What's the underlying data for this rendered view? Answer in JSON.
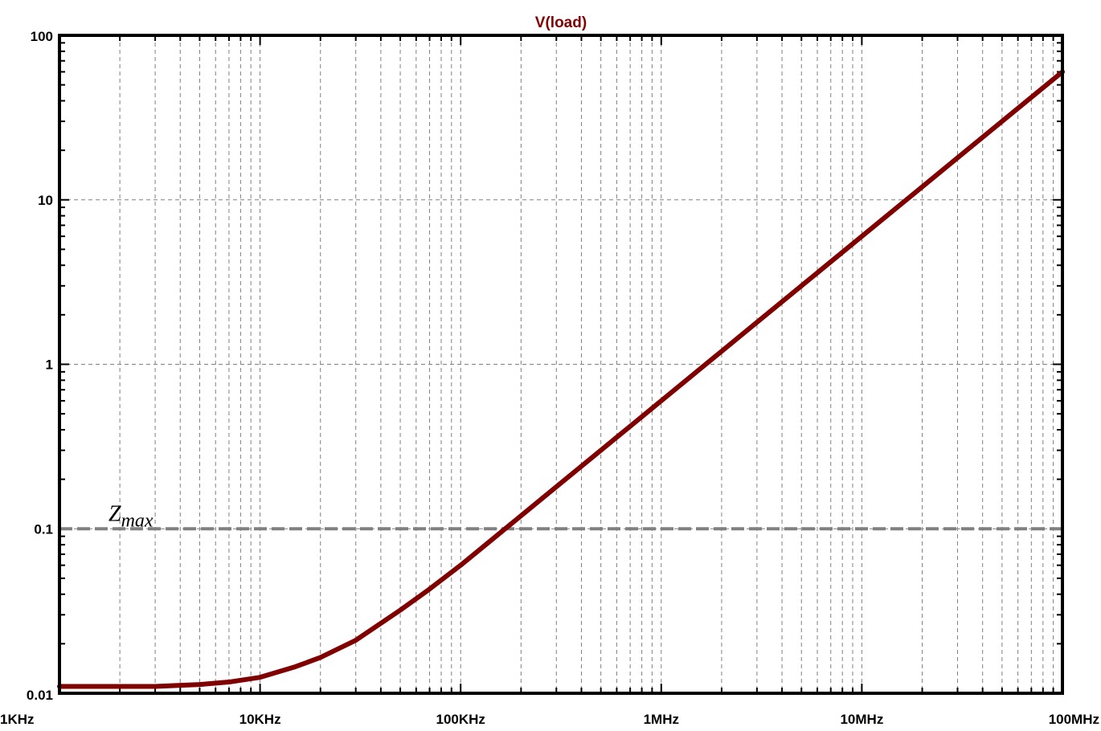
{
  "chart_data": {
    "type": "line",
    "title": "V(load)",
    "xlabel": "",
    "ylabel": "",
    "xscale": "log",
    "yscale": "log",
    "xlim": [
      1000,
      100000000
    ],
    "ylim": [
      0.01,
      100
    ],
    "grid": true,
    "legend": "none",
    "x_ticks": [
      {
        "value": 1000,
        "label": "1KHz"
      },
      {
        "value": 10000,
        "label": "10KHz"
      },
      {
        "value": 100000,
        "label": "100KHz"
      },
      {
        "value": 1000000,
        "label": "1MHz"
      },
      {
        "value": 10000000,
        "label": "10MHz"
      },
      {
        "value": 100000000,
        "label": "100MHz"
      }
    ],
    "y_ticks": [
      {
        "value": 0.01,
        "label": "0.01"
      },
      {
        "value": 0.1,
        "label": "0.1"
      },
      {
        "value": 1,
        "label": "1"
      },
      {
        "value": 10,
        "label": "10"
      },
      {
        "value": 100,
        "label": "100"
      }
    ],
    "series": [
      {
        "color": "#800000",
        "x": [
          1000,
          2000,
          3000,
          5000,
          7000,
          10000,
          15000,
          20000,
          30000,
          50000,
          70000,
          100000,
          150000,
          200000,
          300000,
          500000,
          700000,
          1000000,
          2000000,
          3000000,
          5000000,
          10000000,
          20000000,
          30000000,
          50000000,
          100000000
        ],
        "y": [
          0.011,
          0.011,
          0.011,
          0.0113,
          0.0117,
          0.0125,
          0.0145,
          0.0165,
          0.021,
          0.032,
          0.043,
          0.06,
          0.09,
          0.12,
          0.18,
          0.3,
          0.42,
          0.6,
          1.2,
          1.8,
          3.0,
          6.0,
          12,
          18,
          30,
          60
        ]
      }
    ],
    "reference_lines": [
      {
        "y": 0.1,
        "label_base": "Z",
        "label_sub": "max",
        "color": "#808080",
        "style": "dashed"
      }
    ]
  }
}
